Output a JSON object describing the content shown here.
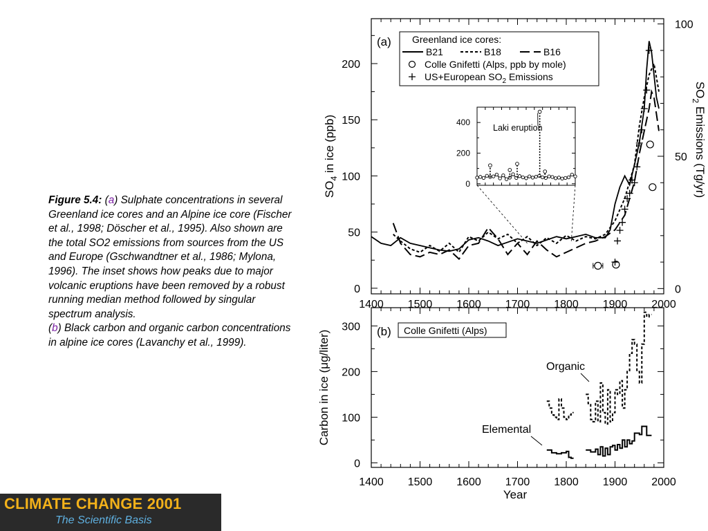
{
  "caption": {
    "fig_label": "Figure 5.4:",
    "open_paren": "(",
    "a_letter": "a",
    "a_close": ")",
    "a_text": " Sulphate concentrations in several Greenland ice cores and an Alpine ice core (Fischer et al., 1998; Döscher et al., 1995). Also shown are the total SO2 emissions from sources from the US and Europe (Gschwandtner et al., 1986; Mylona, 1996). The inset shows how peaks due to major volcanic eruptions have been removed by a robust running median method followed by singular spectrum analysis.",
    "b_letter": "b",
    "b_close": ")",
    "b_text": " Black carbon and organic carbon concentrations in alpine ice cores (Lavanchy et al., 1999)."
  },
  "banner": {
    "title": "CLIMATE CHANGE 2001",
    "subtitle": "The Scientific Basis",
    "bg_color": "#2a2a2a",
    "title_color": "#f2b11a",
    "subtitle_color": "#5fb0e0"
  },
  "chart_data": [
    {
      "type": "line",
      "panel_label": "(a)",
      "xlim": [
        1400,
        2000
      ],
      "xticks": [
        1400,
        1500,
        1600,
        1700,
        1800,
        1900,
        2000
      ],
      "ylim": [
        -5,
        240
      ],
      "yticks": [
        0,
        50,
        100,
        150,
        200
      ],
      "ylabel_parts": [
        "SO",
        "4",
        " in ice (ppb)"
      ],
      "y2lim": [
        -2,
        102
      ],
      "y2ticks": [
        0,
        50,
        100
      ],
      "y2label_parts": [
        "SO",
        "2",
        " Emissions (Tg/yr)"
      ],
      "legend": {
        "title": "Greenland ice cores:",
        "placement": "top",
        "line_entries": [
          {
            "label": "B21",
            "style": "solid"
          },
          {
            "label": "B18",
            "style": "dotted"
          },
          {
            "label": "B16",
            "style": "dashed"
          }
        ],
        "marker_entries": [
          {
            "marker": "circle",
            "label": "Colle Gnifetti (Alps, ppb by mole)"
          },
          {
            "marker": "plus",
            "label_parts": [
              "US+European SO",
              "2",
              " Emissions"
            ]
          }
        ]
      },
      "series": [
        {
          "name": "B21",
          "style": "solid",
          "x": [
            1400,
            1420,
            1440,
            1460,
            1480,
            1500,
            1520,
            1540,
            1560,
            1580,
            1600,
            1620,
            1640,
            1660,
            1680,
            1700,
            1720,
            1740,
            1760,
            1780,
            1800,
            1820,
            1840,
            1860,
            1880,
            1890,
            1900,
            1910,
            1920,
            1930,
            1940,
            1950,
            1960,
            1965,
            1970,
            1975,
            1980,
            1985,
            1990
          ],
          "values": [
            46,
            40,
            38,
            45,
            40,
            38,
            36,
            34,
            33,
            35,
            43,
            45,
            42,
            38,
            41,
            44,
            42,
            40,
            43,
            46,
            44,
            46,
            48,
            45,
            45,
            52,
            75,
            90,
            100,
            92,
            110,
            130,
            160,
            195,
            220,
            210,
            190,
            170,
            160
          ]
        },
        {
          "name": "B18",
          "style": "dotted",
          "x": [
            1445,
            1460,
            1480,
            1500,
            1520,
            1540,
            1560,
            1580,
            1600,
            1620,
            1640,
            1660,
            1680,
            1700,
            1720,
            1740,
            1760,
            1780,
            1800,
            1820,
            1840,
            1860,
            1880,
            1900,
            1920,
            1940,
            1950,
            1960,
            1970,
            1980,
            1990
          ],
          "values": [
            48,
            42,
            35,
            32,
            38,
            33,
            40,
            32,
            46,
            42,
            50,
            44,
            48,
            40,
            46,
            38,
            45,
            40,
            47,
            42,
            46,
            44,
            48,
            60,
            80,
            110,
            145,
            170,
            190,
            200,
            175
          ]
        },
        {
          "name": "B16",
          "style": "dashed",
          "x": [
            1445,
            1460,
            1480,
            1500,
            1520,
            1540,
            1560,
            1580,
            1600,
            1620,
            1640,
            1660,
            1680,
            1700,
            1720,
            1740,
            1760,
            1780,
            1800,
            1820,
            1840,
            1860,
            1880,
            1900,
            1920,
            1940,
            1950,
            1960,
            1965,
            1970,
            1975,
            1980,
            1990
          ],
          "values": [
            58,
            40,
            30,
            28,
            32,
            30,
            34,
            26,
            38,
            40,
            54,
            44,
            30,
            40,
            30,
            42,
            34,
            28,
            32,
            36,
            40,
            42,
            46,
            52,
            65,
            95,
            120,
            140,
            150,
            160,
            175,
            170,
            140
          ]
        },
        {
          "name": "Colle Gnifetti (Alps, ppb by mole)",
          "marker": "circle",
          "x": [
            1865,
            1902,
            1972,
            1977
          ],
          "values": [
            20,
            21,
            128,
            90
          ],
          "xerr": [
            10,
            5,
            0,
            0
          ]
        },
        {
          "name": "US+European SO2 Emissions",
          "marker": "plus",
          "axis": "right",
          "x": [
            1900,
            1905,
            1910,
            1915,
            1920,
            1925,
            1930,
            1935,
            1940,
            1945,
            1950,
            1955,
            1960,
            1965,
            1970
          ],
          "values": [
            10,
            18,
            22,
            25,
            30,
            34,
            36,
            41,
            40,
            46,
            55,
            60,
            68,
            75,
            90
          ]
        }
      ],
      "inset": {
        "annotation": "Laki eruption",
        "xlim": [
          1400,
          2000
        ],
        "ylim": [
          -10,
          500
        ],
        "yticks": [
          0,
          200,
          400
        ],
        "series": [
          {
            "style": "line_with_markers",
            "x": [
              1400,
              1420,
              1440,
              1460,
              1480,
              1500,
              1520,
              1540,
              1560,
              1580,
              1600,
              1620,
              1640,
              1660,
              1680,
              1700,
              1720,
              1740,
              1760,
              1780,
              1800,
              1820,
              1840,
              1860,
              1880,
              1900,
              1920,
              1940,
              1960,
              1980,
              2000
            ],
            "values": [
              40,
              45,
              38,
              52,
              44,
              48,
              60,
              35,
              55,
              30,
              40,
              62,
              38,
              50,
              42,
              36,
              48,
              40,
              46,
              52,
              42,
              38,
              48,
              44,
              36,
              40,
              34,
              38,
              42,
              60,
              48
            ]
          },
          {
            "style": "spikes",
            "x": [
              1480,
              1600,
              1645,
              1783,
              1815
            ],
            "values": [
              120,
              90,
              130,
              470,
              80
            ]
          }
        ]
      }
    },
    {
      "type": "line",
      "panel_label": "(b)",
      "box_label": "Colle Gnifetti (Alps)",
      "xlim": [
        1400,
        2000
      ],
      "xticks": [
        1400,
        1500,
        1600,
        1700,
        1800,
        1900,
        2000
      ],
      "xlabel": "Year",
      "ylim": [
        -10,
        340
      ],
      "yticks": [
        0,
        100,
        200,
        300
      ],
      "ylabel_parts": [
        "Carbon in ice (",
        "μ",
        "g/liter)"
      ],
      "annotations": [
        "Organic",
        "Elemental"
      ],
      "series": [
        {
          "name": "Organic",
          "style": "dotted-step",
          "x": [
            1760,
            1765,
            1770,
            1775,
            1780,
            1785,
            1790,
            1795,
            1800,
            1805,
            1810,
            1840,
            1845,
            1850,
            1855,
            1860,
            1865,
            1870,
            1875,
            1880,
            1885,
            1890,
            1895,
            1900,
            1905,
            1910,
            1915,
            1920,
            1925,
            1930,
            1935,
            1940,
            1945,
            1950,
            1955,
            1960,
            1965,
            1970
          ],
          "values": [
            135,
            120,
            105,
            100,
            95,
            140,
            120,
            100,
            95,
            105,
            110,
            150,
            130,
            95,
            90,
            135,
            90,
            175,
            110,
            85,
            160,
            90,
            110,
            160,
            150,
            180,
            120,
            160,
            200,
            240,
            270,
            260,
            200,
            175,
            260,
            330,
            320,
            325
          ]
        },
        {
          "name": "Elemental",
          "style": "step",
          "x": [
            1760,
            1770,
            1780,
            1790,
            1800,
            1805,
            1810,
            1840,
            1850,
            1860,
            1865,
            1870,
            1875,
            1880,
            1885,
            1890,
            1895,
            1900,
            1905,
            1910,
            1915,
            1920,
            1925,
            1930,
            1935,
            1940,
            1945,
            1950,
            1955,
            1960,
            1965,
            1970
          ],
          "values": [
            28,
            22,
            20,
            22,
            25,
            12,
            10,
            28,
            24,
            30,
            18,
            35,
            15,
            32,
            18,
            35,
            38,
            28,
            40,
            32,
            50,
            35,
            50,
            42,
            48,
            65,
            65,
            62,
            80,
            80,
            60,
            60
          ]
        }
      ]
    }
  ]
}
